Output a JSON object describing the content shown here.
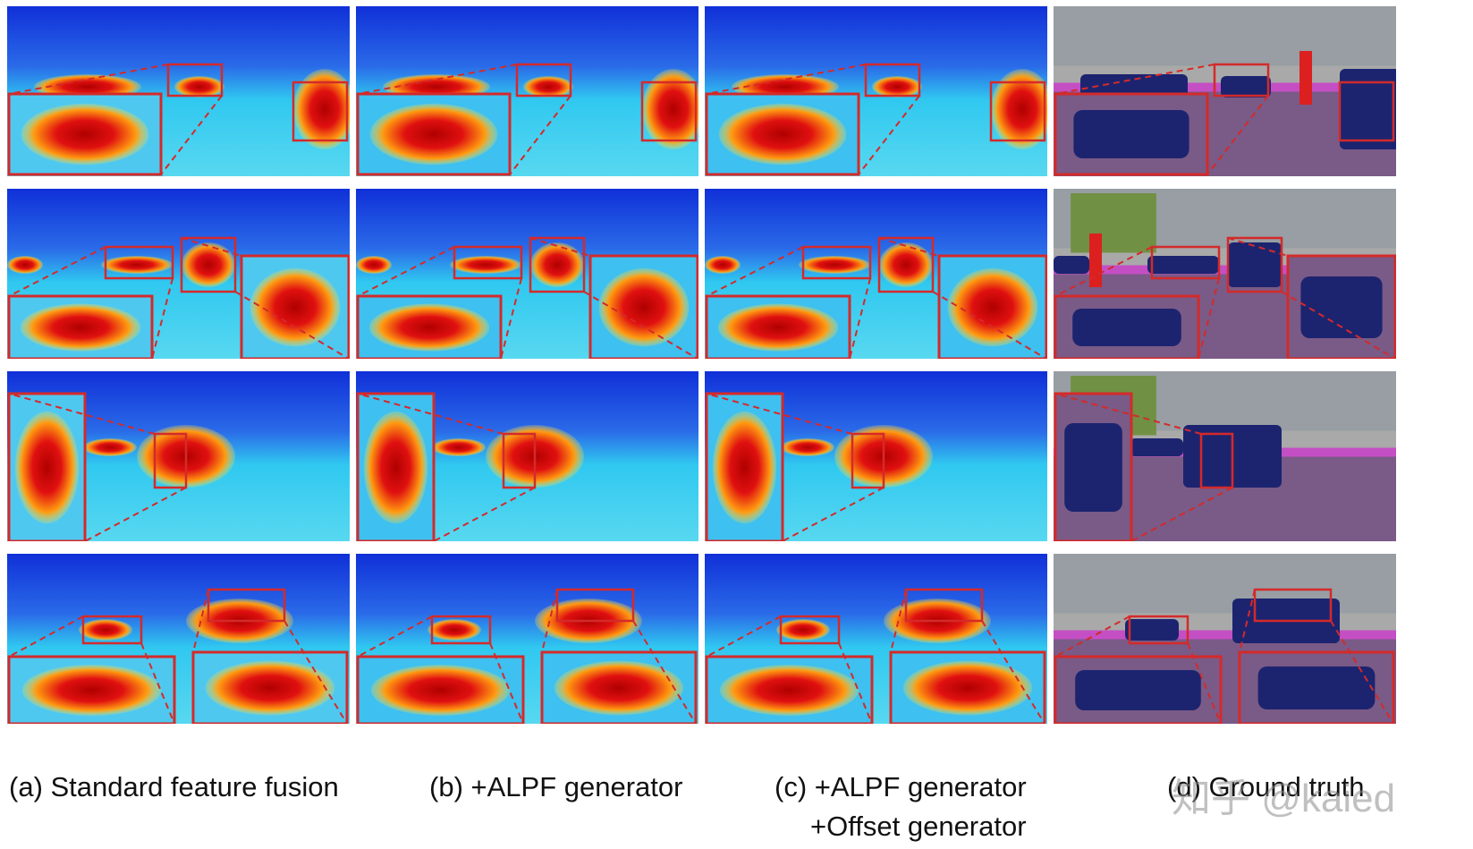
{
  "captions": {
    "a": "(a)  Standard feature fusion",
    "b": "(b) +ALPF generator",
    "c_line1": "(c) +ALPF generator",
    "c_line2": "+Offset generator",
    "d": "(d) Ground truth"
  },
  "watermark": "知乎 @kaied",
  "columns": [
    {
      "id": "a",
      "kind": "heatmap",
      "quality": "coarse"
    },
    {
      "id": "b",
      "kind": "heatmap",
      "quality": "smooth"
    },
    {
      "id": "c",
      "kind": "heatmap",
      "quality": "sharp"
    },
    {
      "id": "d",
      "kind": "segmentation",
      "quality": "ground-truth"
    }
  ],
  "rows": 4,
  "colors": {
    "highlight_box": "#d42a2a",
    "heat_low": "#1030d8",
    "heat_mid": "#30c8f0",
    "heat_high": "#e01010",
    "seg_car": "#1c2470",
    "seg_road": "#7a5a86",
    "seg_sidewalk": "#c44fc4",
    "seg_person": "#dc2020",
    "seg_vegetation": "#6b8e3a",
    "seg_building": "#9a9a9a",
    "seg_sky": "#8fb6d8"
  }
}
